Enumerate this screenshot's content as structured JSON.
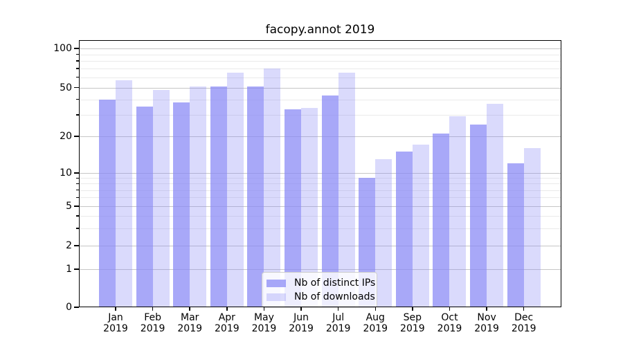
{
  "chart_data": {
    "type": "bar",
    "title": "facopy.annot 2019",
    "categories": [
      "Jan",
      "Feb",
      "Mar",
      "Apr",
      "May",
      "Jun",
      "Jul",
      "Aug",
      "Sep",
      "Oct",
      "Nov",
      "Dec"
    ],
    "year_label": "2019",
    "series": [
      {
        "name": "Nb of distinct IPs",
        "color": "rgba(136,136,245,0.73)",
        "values": [
          40,
          35,
          38,
          51,
          51,
          33,
          43,
          9,
          15,
          21,
          25,
          12
        ]
      },
      {
        "name": "Nb of downloads",
        "color": "rgba(136,136,245,0.31)",
        "values": [
          57,
          48,
          51,
          65,
          70,
          34,
          65,
          13,
          17,
          29,
          37,
          16
        ]
      }
    ],
    "y_axis": {
      "scale": "symlog",
      "major_ticks": [
        0,
        1,
        2,
        5,
        10,
        20,
        50,
        100
      ],
      "minor_ticks": [
        3,
        4,
        6,
        7,
        8,
        9,
        30,
        40,
        60,
        70,
        80,
        90
      ],
      "ylim": [
        0,
        120
      ]
    },
    "legend": {
      "entries": [
        "Nb of distinct IPs",
        "Nb of downloads"
      ],
      "position": "lower center"
    },
    "grid": "horizontal major+minor",
    "colors": {
      "spine": "#000000",
      "grid_major": "#c6c6c6",
      "grid_minor": "#eaeaea"
    }
  }
}
